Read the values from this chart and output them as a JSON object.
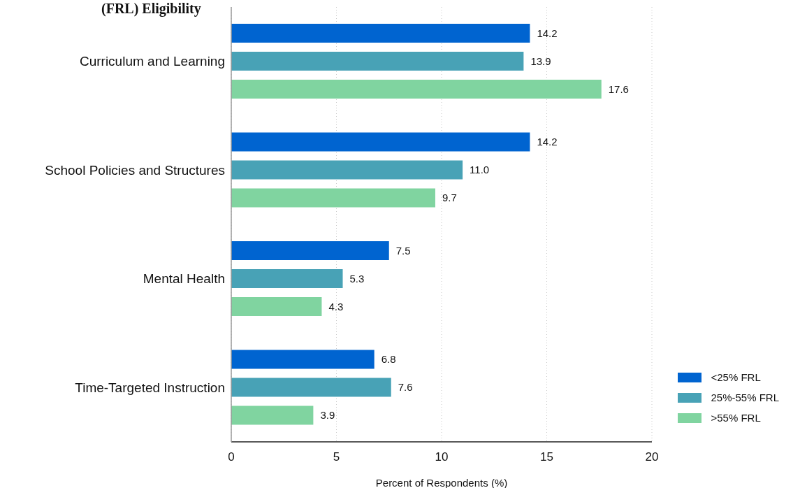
{
  "chart_data": {
    "type": "bar",
    "orientation": "horizontal",
    "title": "(FRL) Eligibility",
    "categories": [
      "Curriculum and Learning",
      "School Policies and Structures",
      "Mental Health",
      "Time-Targeted Instruction"
    ],
    "series": [
      {
        "name": "<25% FRL",
        "color": "#0064d0",
        "values": [
          14.2,
          14.2,
          7.5,
          6.8
        ],
        "value_labels": [
          "14.2",
          "14.2",
          "7.5",
          "6.8"
        ]
      },
      {
        "name": "25%-55% FRL",
        "color": "#48a2b6",
        "values": [
          13.9,
          11.0,
          5.3,
          7.6
        ],
        "value_labels": [
          "13.9",
          "11.0",
          "5.3",
          "7.6"
        ]
      },
      {
        "name": ">55% FRL",
        "color": "#80d4a0",
        "values": [
          17.6,
          9.7,
          4.3,
          3.9
        ],
        "value_labels": [
          "17.6",
          "9.7",
          "4.3",
          "3.9"
        ]
      }
    ],
    "xlabel": "Percent of Respondents (%)",
    "xlim": [
      0,
      20
    ],
    "xticks": [
      0,
      5,
      10,
      15,
      20
    ],
    "grid": "x",
    "legend": "bottom right"
  }
}
